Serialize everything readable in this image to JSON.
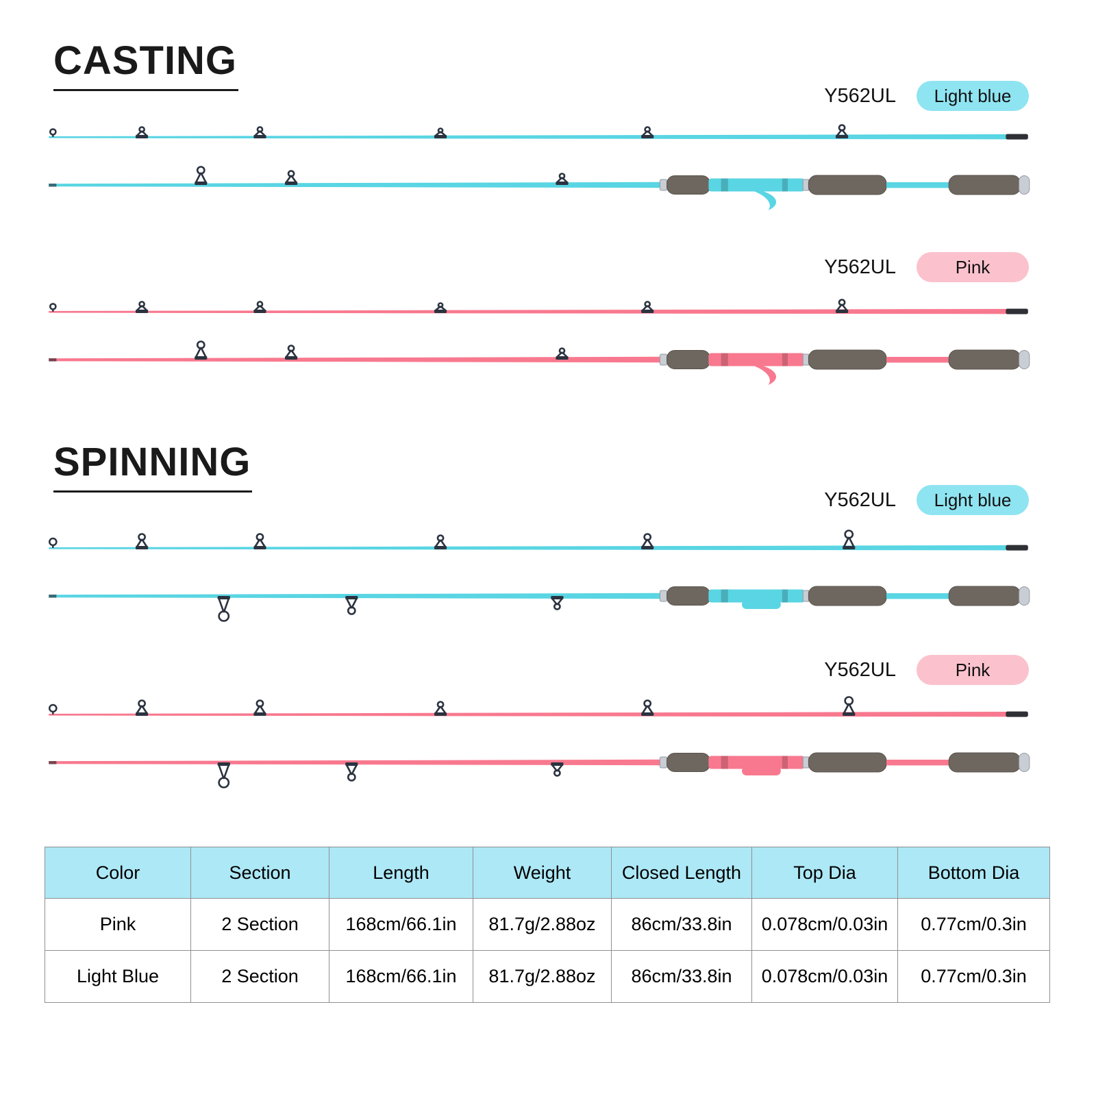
{
  "colors": {
    "rod_light_blue": "#59D5E3",
    "rod_pink": "#F8798F",
    "badge_light_blue": "#8FE4F1",
    "badge_pink": "#FBC2CD",
    "table_header_bg": "#ADE8F6"
  },
  "sections": [
    {
      "title": "CASTING",
      "rods": [
        {
          "model": "Y562UL",
          "color_name": "Light blue"
        },
        {
          "model": "Y562UL",
          "color_name": "Pink"
        }
      ]
    },
    {
      "title": "SPINNING",
      "rods": [
        {
          "model": "Y562UL",
          "color_name": "Light blue"
        },
        {
          "model": "Y562UL",
          "color_name": "Pink"
        }
      ]
    }
  ],
  "spec_table": {
    "headers": [
      "Color",
      "Section",
      "Length",
      "Weight",
      "Closed Length",
      "Top Dia",
      "Bottom Dia"
    ],
    "rows": [
      [
        "Pink",
        "2 Section",
        "168cm/66.1in",
        "81.7g/2.88oz",
        "86cm/33.8in",
        "0.078cm/0.03in",
        "0.77cm/0.3in"
      ],
      [
        "Light Blue",
        "2 Section",
        "168cm/66.1in",
        "81.7g/2.88oz",
        "86cm/33.8in",
        "0.078cm/0.03in",
        "0.77cm/0.3in"
      ]
    ]
  }
}
